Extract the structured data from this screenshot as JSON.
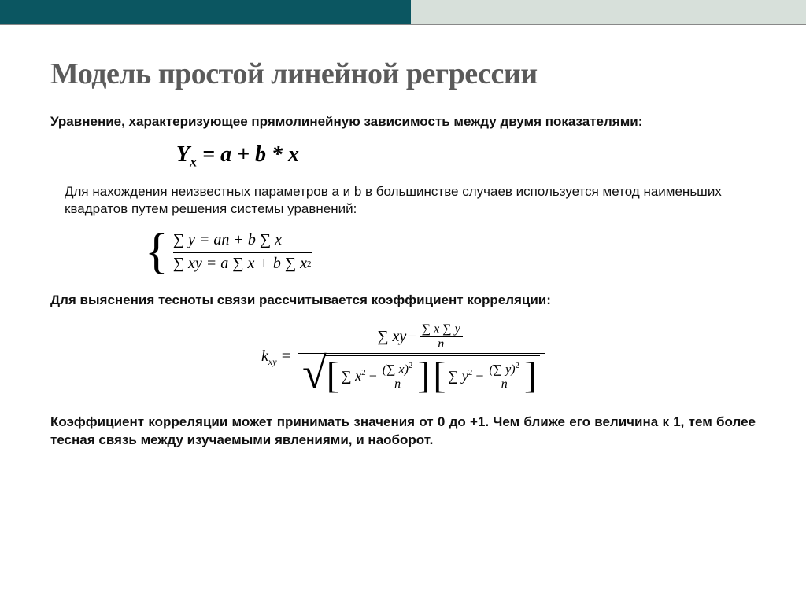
{
  "colors": {
    "bar_left": "#0b5661",
    "bar_right": "#d7e0da",
    "title": "#5b5b5b",
    "text": "#111111",
    "bg": "#ffffff"
  },
  "title": "Модель простой линейной регрессии",
  "para1": "Уравнение, характеризующее прямолинейную зависимость между двумя показателями:",
  "eq_main": {
    "lhs_var": "Y",
    "lhs_sub": "x",
    "rhs": "= a + b * x"
  },
  "para2": "Для нахождения неизвестных параметров a и b в большинстве случаев используется метод наименьших квадратов путем решения системы уравнений:",
  "system": {
    "row1": "∑ y = an + b ∑ x",
    "row2_pre": "∑ xy = a ∑ x + b ∑ x",
    "row2_exp": "2"
  },
  "para3": "Для выяснения тесноты связи рассчитывается коэффициент корреляции:",
  "corr": {
    "k": "k",
    "ksub": "xy",
    "eq": " = ",
    "num_sigxy": "∑ xy",
    "minus": " − ",
    "frac_top1": "∑ x ∑ y",
    "n": "n",
    "sx2": "∑ x",
    "sy2": "∑ y",
    "lparen": "(",
    "rparen": ")",
    "sq": "2"
  },
  "para4": "Коэффициент корреляции может принимать значения от 0 до +1. Чем ближе его величина к 1, тем более тесная связь между изучаемыми явлениями, и наоборот."
}
